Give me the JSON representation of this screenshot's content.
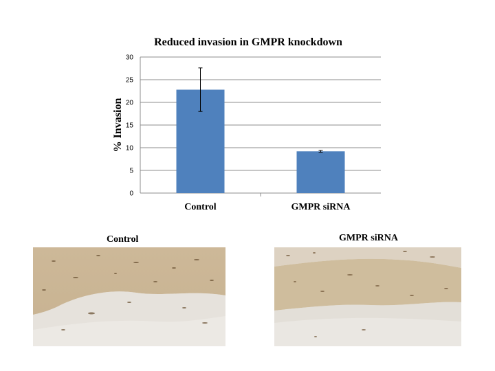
{
  "chart_data": {
    "type": "bar",
    "title": "Reduced invasion in GMPR knockdown",
    "ylabel": "% Invasion",
    "xlabel": "",
    "categories": [
      "Control",
      "GMPR siRNA"
    ],
    "values": [
      22.8,
      9.2
    ],
    "error": [
      4.8,
      0.2
    ],
    "ylim": [
      0,
      30
    ],
    "yticks": [
      0,
      5,
      10,
      15,
      20,
      25,
      30
    ],
    "grid": true,
    "bar_color": "#4f81bd"
  },
  "images": {
    "control_label": "Control",
    "sirna_label": "GMPR siRNA"
  }
}
